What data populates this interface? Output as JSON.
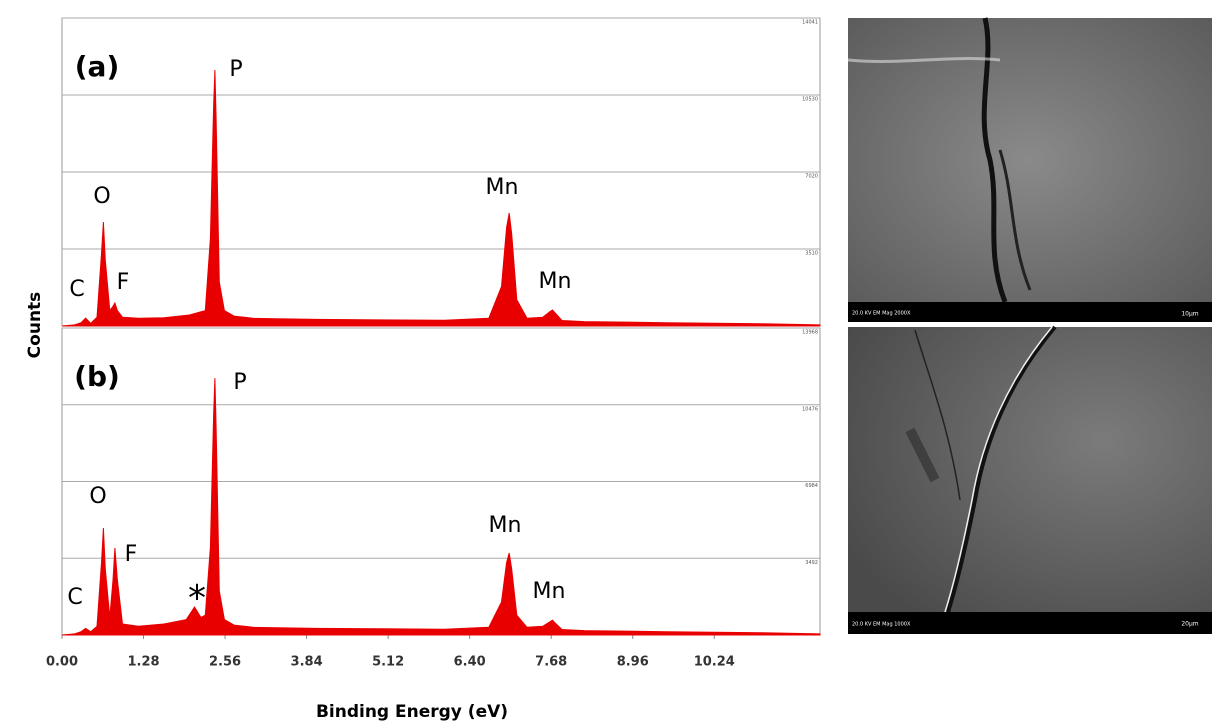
{
  "figure": {
    "y_label": "Counts",
    "x_label": "Binding Energy (eV)"
  },
  "chart_data": [
    {
      "type": "area",
      "annotations": [
        "(a)",
        "P",
        "O",
        "Mn",
        "C",
        "F",
        "Mn"
      ],
      "x": [
        0,
        0.2,
        0.3,
        0.37,
        0.45,
        0.55,
        0.62,
        0.65,
        0.68,
        0.75,
        0.8,
        0.83,
        0.87,
        0.95,
        1.2,
        1.6,
        2.0,
        2.25,
        2.33,
        2.38,
        2.4,
        2.42,
        2.47,
        2.55,
        2.7,
        3.0,
        4.0,
        5.0,
        6.0,
        6.7,
        6.9,
        6.98,
        7.02,
        7.06,
        7.14,
        7.3,
        7.55,
        7.66,
        7.7,
        7.74,
        7.85,
        8.2,
        9.5,
        11,
        11.9
      ],
      "series": [
        {
          "color": "#e80000",
          "values": [
            0,
            50,
            150,
            360,
            120,
            400,
            3300,
            4740,
            3000,
            700,
            900,
            1050,
            700,
            400,
            350,
            380,
            500,
            700,
            4000,
            10000,
            11670,
            9500,
            2000,
            700,
            450,
            350,
            300,
            280,
            260,
            350,
            1800,
            4500,
            5150,
            4200,
            1200,
            350,
            400,
            650,
            730,
            600,
            250,
            200,
            150,
            100,
            50
          ]
        }
      ],
      "xlim": [
        0,
        11.9
      ],
      "ylim": [
        0,
        14041
      ],
      "yticks": [
        3510,
        7020,
        10530,
        14041
      ],
      "grid": true
    },
    {
      "type": "area",
      "annotations": [
        "(b)",
        "P",
        "O",
        "F",
        "Mn",
        "C",
        "*",
        "Mn"
      ],
      "x": [
        0,
        0.2,
        0.3,
        0.37,
        0.45,
        0.55,
        0.62,
        0.65,
        0.68,
        0.75,
        0.8,
        0.83,
        0.87,
        0.95,
        1.2,
        1.6,
        1.95,
        2.08,
        2.18,
        2.25,
        2.33,
        2.38,
        2.4,
        2.42,
        2.47,
        2.55,
        2.7,
        3.0,
        4.0,
        5.0,
        6.0,
        6.7,
        6.9,
        6.98,
        7.02,
        7.06,
        7.14,
        7.3,
        7.55,
        7.66,
        7.7,
        7.74,
        7.85,
        8.2,
        9.5,
        11,
        11.9
      ],
      "series": [
        {
          "color": "#e80000",
          "values": [
            0,
            50,
            150,
            300,
            150,
            400,
            3300,
            4870,
            3000,
            800,
            2500,
            3960,
            2500,
            500,
            400,
            500,
            700,
            1270,
            800,
            900,
            4000,
            10000,
            11690,
            9500,
            2000,
            700,
            450,
            350,
            300,
            280,
            260,
            350,
            1500,
            3300,
            3730,
            3000,
            900,
            350,
            400,
            600,
            680,
            550,
            250,
            200,
            150,
            100,
            50
          ]
        }
      ],
      "xlim": [
        0,
        11.9
      ],
      "ylim": [
        0,
        13968
      ],
      "yticks": [
        3492,
        6984,
        10476,
        13968
      ],
      "grid": true,
      "xticks": [
        {
          "value": 0,
          "label": "0.00"
        },
        1.28,
        2.56,
        3.84,
        5.12,
        {
          "value": 6.4,
          "label": "6.40"
        },
        7.68,
        8.96,
        10.24
      ]
    }
  ],
  "images": [
    {
      "caption": "20.0 KV EM Mag 2000X",
      "scale_bar": "10μm"
    },
    {
      "caption": "20.0 KV EM Mag 1000X",
      "scale_bar": "20μm"
    }
  ]
}
